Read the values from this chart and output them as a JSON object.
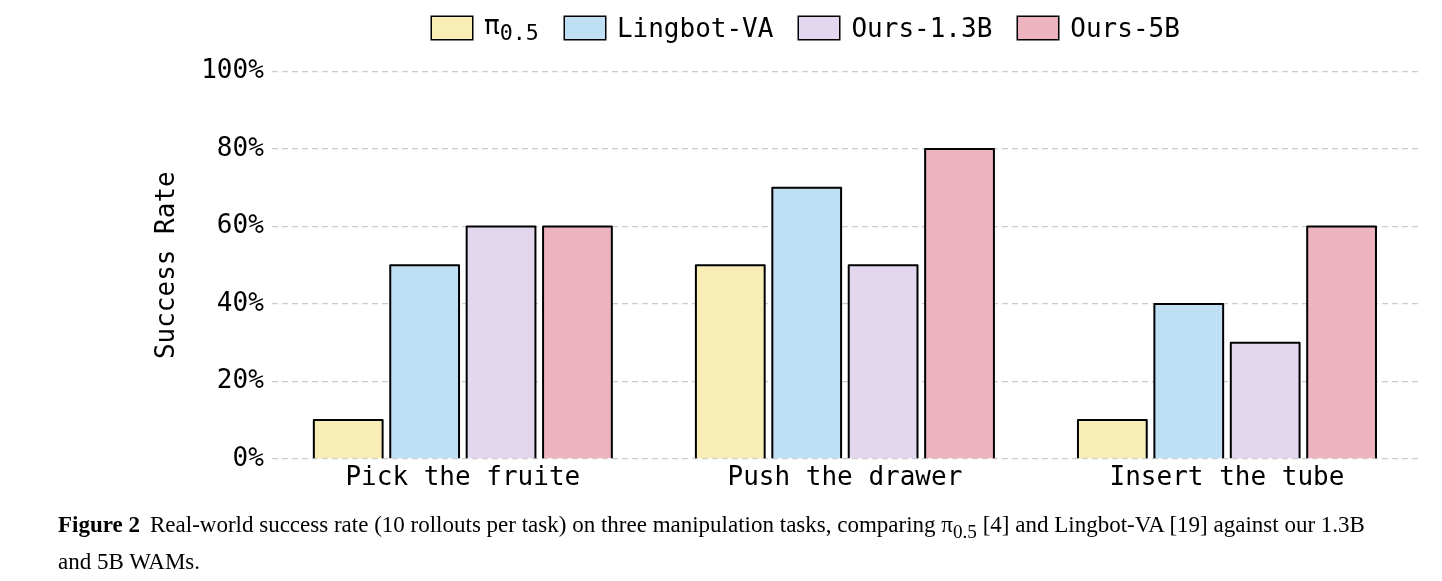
{
  "chart_data": {
    "type": "bar",
    "ylabel": "Success Rate",
    "categories": [
      "Pick the fruite",
      "Push the drawer",
      "Insert the tube"
    ],
    "series": [
      {
        "name": "π$_{0.5}$",
        "color": "#f7edb5",
        "values": [
          10,
          50,
          10
        ]
      },
      {
        "name": "Lingbot-VA",
        "color": "#bfdff5",
        "values": [
          50,
          70,
          40
        ]
      },
      {
        "name": "Ours-1.3B",
        "color": "#e3d7ef",
        "values": [
          60,
          50,
          30
        ]
      },
      {
        "name": "Ours-5B",
        "color": "#edb3bf",
        "values": [
          60,
          80,
          60
        ]
      }
    ],
    "ylim": [
      0,
      100
    ],
    "yticks": [
      {
        "value": 0,
        "label": "0%"
      },
      {
        "value": 20,
        "label": "20%"
      },
      {
        "value": 40,
        "label": "40%"
      },
      {
        "value": 60,
        "label": "60%"
      },
      {
        "value": 80,
        "label": "80%"
      },
      {
        "value": 100,
        "label": "100%"
      }
    ],
    "grid": "y",
    "legend": "top",
    "annotations": [
      "Figure 2",
      "Real-world success rate (10 rollouts per task) on three manipulation tasks, comparing π$_{0.5}$ [4] and Lingbot-VA [19] against our 1.3B and 5B WAMs."
    ]
  }
}
